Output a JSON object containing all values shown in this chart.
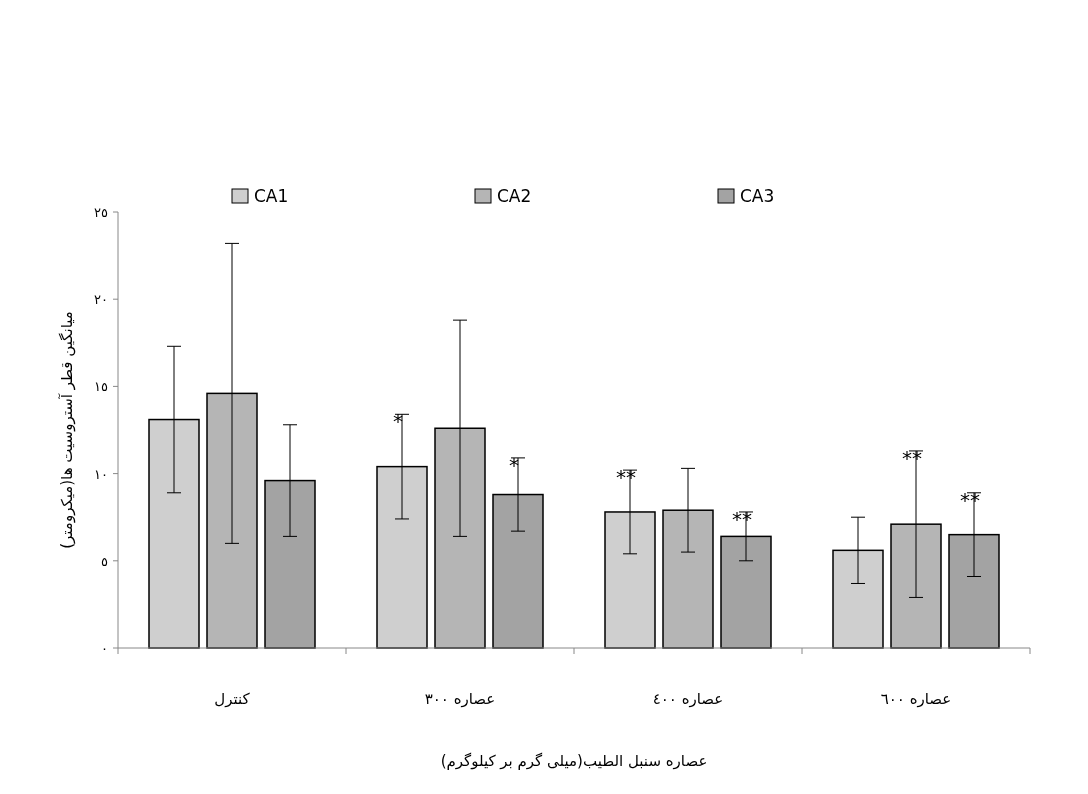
{
  "chart_data": {
    "type": "bar",
    "xlabel": "عصاره سنبل الطیب(میلی گرم بر کیلوگرم)",
    "ylabel": "میانگین قطر آستروسیت ها(میکرومتر)",
    "categories": [
      "کنترل",
      "عصاره ۳۰۰",
      "عصاره ٤٠٠",
      "عصاره ٦٠٠"
    ],
    "series": [
      {
        "name": "CA1",
        "color": "#cfcfcf",
        "values": [
          13.1,
          10.4,
          7.8,
          5.6
        ],
        "errors": [
          4.2,
          3.0,
          2.4,
          1.9
        ]
      },
      {
        "name": "CA2",
        "color": "#b5b5b5",
        "values": [
          14.6,
          12.6,
          7.9,
          7.1
        ],
        "errors": [
          8.6,
          6.2,
          2.4,
          4.2
        ]
      },
      {
        "name": "CA3",
        "color": "#a3a3a3",
        "values": [
          9.6,
          8.8,
          6.4,
          6.5
        ],
        "errors": [
          3.2,
          2.1,
          1.4,
          2.4
        ]
      }
    ],
    "ylim": [
      0,
      25
    ],
    "yticks": [
      {
        "value": 0,
        "label": "٠"
      },
      {
        "value": 5,
        "label": "٥"
      },
      {
        "value": 10,
        "label": "١٠"
      },
      {
        "value": 15,
        "label": "١٥"
      },
      {
        "value": 20,
        "label": "٢٠"
      },
      {
        "value": 25,
        "label": "٢٥"
      }
    ],
    "annotations": [
      {
        "text": "*",
        "x": "عصاره ۳۰۰",
        "y": 13.4
      },
      {
        "text": "*",
        "x": "عصاره ۳۰۰",
        "y": 10.9
      },
      {
        "text": "**",
        "x": "عصاره ٤٠٠",
        "y": 10.2
      },
      {
        "text": "**",
        "x": "عصاره ٤٠٠",
        "y": 7.8
      },
      {
        "text": "**",
        "x": "عصاره ٦٠٠",
        "y": 11.3
      },
      {
        "text": "**",
        "x": "عصاره ٦٠٠",
        "y": 8.9
      }
    ],
    "grid": false,
    "legend": "top"
  }
}
